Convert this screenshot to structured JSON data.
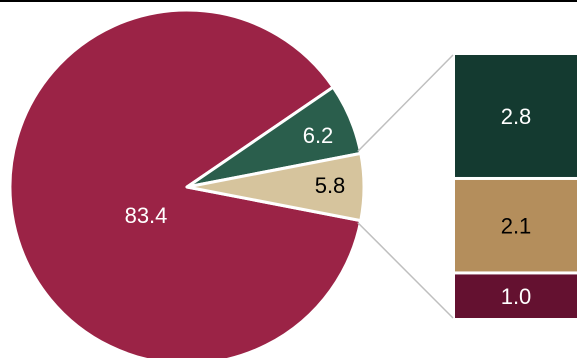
{
  "chart_data": {
    "type": "pie",
    "title": "",
    "slices": [
      {
        "value": 83.4,
        "label": "83.4",
        "color": "#9b2346",
        "text_color": "#ffffff"
      },
      {
        "value": 6.2,
        "label": "6.2",
        "color": "#2a5e4c",
        "text_color": "#ffffff"
      },
      {
        "value": 5.8,
        "label": "5.8",
        "color": "#d6c49d",
        "text_color": "#000000"
      }
    ],
    "breakdown": {
      "of_slice": "5.8",
      "segments": [
        {
          "value": 2.8,
          "label": "2.8",
          "color": "#143a30",
          "text_color": "#ffffff"
        },
        {
          "value": 2.1,
          "label": "2.1",
          "color": "#b48e5c",
          "text_color": "#000000"
        },
        {
          "value": 1.0,
          "label": "1.0",
          "color": "#641130",
          "text_color": "#ffffff"
        }
      ]
    },
    "connector_color": "#bfbfbf",
    "legend": "none"
  }
}
